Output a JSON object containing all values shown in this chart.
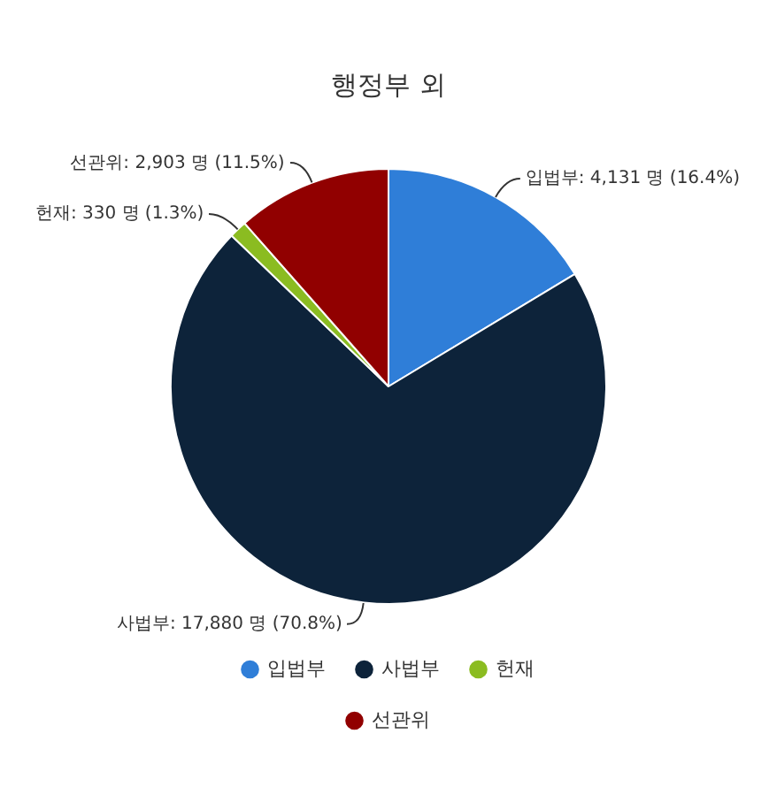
{
  "chart_data": {
    "type": "pie",
    "title": "행정부 외",
    "categories": [
      "입법부",
      "사법부",
      "헌재",
      "선관위"
    ],
    "values": [
      4131,
      17880,
      330,
      2903
    ],
    "value_labels": [
      "입법부: 4,131 명 (16.4%)",
      "사법부: 17,880 명 (70.8%)",
      "헌재: 330 명 (1.3%)",
      "선관위: 2,903 명 (11.5%)"
    ],
    "colors": [
      "#2f7ed8",
      "#0d233a",
      "#8bbc21",
      "#910000"
    ],
    "legend": "bottom"
  }
}
